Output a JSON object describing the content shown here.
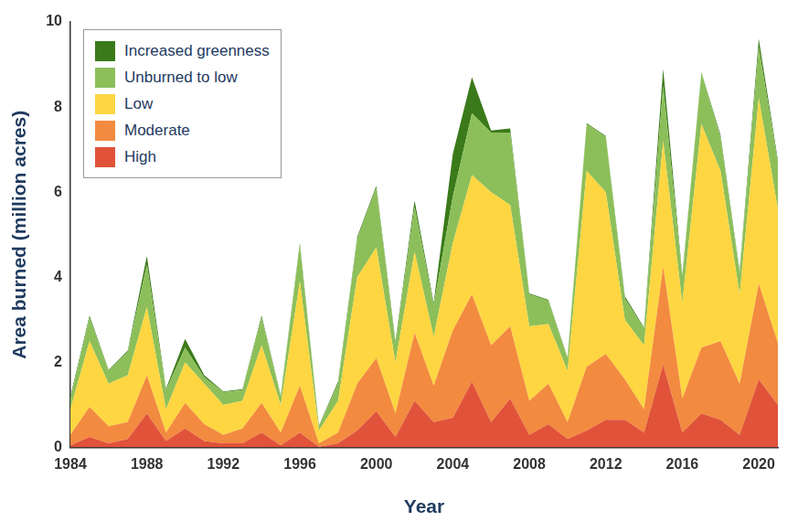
{
  "chart_data": {
    "type": "area",
    "x_label": "Year",
    "y_label": "Area burned (million acres)",
    "x": [
      1984,
      1985,
      1986,
      1987,
      1988,
      1989,
      1990,
      1991,
      1992,
      1993,
      1994,
      1995,
      1996,
      1997,
      1998,
      1999,
      2000,
      2001,
      2002,
      2003,
      2004,
      2005,
      2006,
      2007,
      2008,
      2009,
      2010,
      2011,
      2012,
      2013,
      2014,
      2015,
      2016,
      2017,
      2018,
      2019,
      2020,
      2021
    ],
    "series": [
      {
        "name": "High",
        "color": "#e0533a",
        "values": [
          0.05,
          0.25,
          0.1,
          0.2,
          0.8,
          0.15,
          0.45,
          0.15,
          0.1,
          0.1,
          0.35,
          0.05,
          0.35,
          0.02,
          0.1,
          0.4,
          0.85,
          0.25,
          1.1,
          0.6,
          0.7,
          1.55,
          0.6,
          1.15,
          0.3,
          0.55,
          0.2,
          0.4,
          0.65,
          0.65,
          0.35,
          1.95,
          0.35,
          0.8,
          0.65,
          0.3,
          1.6,
          1.0
        ]
      },
      {
        "name": "Moderate",
        "color": "#f28a3f",
        "values": [
          0.25,
          0.7,
          0.4,
          0.4,
          0.9,
          0.2,
          0.6,
          0.4,
          0.2,
          0.35,
          0.7,
          0.3,
          1.1,
          0.08,
          0.25,
          1.1,
          1.25,
          0.55,
          1.6,
          0.85,
          2.05,
          2.05,
          1.8,
          1.7,
          0.8,
          0.95,
          0.4,
          1.5,
          1.55,
          0.95,
          0.55,
          2.3,
          0.8,
          1.55,
          1.85,
          1.2,
          2.25,
          1.45
        ]
      },
      {
        "name": "Low",
        "color": "#fdd641",
        "values": [
          0.6,
          1.55,
          1.0,
          1.1,
          1.6,
          0.55,
          0.95,
          0.95,
          0.7,
          0.65,
          1.35,
          0.65,
          2.45,
          0.3,
          0.75,
          2.5,
          2.6,
          1.2,
          1.9,
          1.15,
          2.05,
          2.8,
          3.6,
          2.85,
          1.75,
          1.4,
          1.2,
          4.6,
          3.8,
          1.4,
          1.5,
          2.95,
          2.25,
          5.25,
          4.0,
          2.1,
          4.35,
          3.15
        ]
      },
      {
        "name": "Unburned to low",
        "color": "#8cbf5a",
        "values": [
          0.25,
          0.55,
          0.3,
          0.55,
          1.0,
          0.45,
          0.35,
          0.15,
          0.3,
          0.25,
          0.65,
          0.2,
          0.85,
          0.1,
          0.4,
          0.9,
          1.4,
          0.45,
          1.05,
          0.75,
          1.1,
          1.45,
          1.4,
          1.7,
          0.75,
          0.55,
          0.3,
          1.1,
          1.3,
          0.5,
          0.4,
          1.3,
          0.6,
          1.2,
          0.8,
          0.5,
          1.2,
          1.1
        ]
      },
      {
        "name": "Increased greenness",
        "color": "#3b7a1a",
        "values": [
          0.05,
          0.05,
          0.02,
          0.03,
          0.2,
          0.03,
          0.2,
          0.05,
          0.02,
          0.02,
          0.05,
          0.02,
          0.05,
          0.02,
          0.05,
          0.05,
          0.05,
          0.05,
          0.15,
          0.05,
          1.0,
          0.85,
          0.05,
          0.1,
          0.02,
          0.02,
          0.02,
          0.02,
          0.02,
          0.05,
          0.02,
          0.4,
          0.05,
          0.02,
          0.05,
          0.05,
          0.2,
          0.05
        ]
      }
    ],
    "xlim": [
      1984,
      2021
    ],
    "xticks": [
      1984,
      1988,
      1992,
      1996,
      2000,
      2004,
      2008,
      2012,
      2016,
      2020
    ],
    "ylim": [
      0,
      10
    ],
    "yticks": [
      0,
      2,
      4,
      6,
      8,
      10
    ],
    "stacked": true,
    "grid": false,
    "legend": "top-left"
  }
}
